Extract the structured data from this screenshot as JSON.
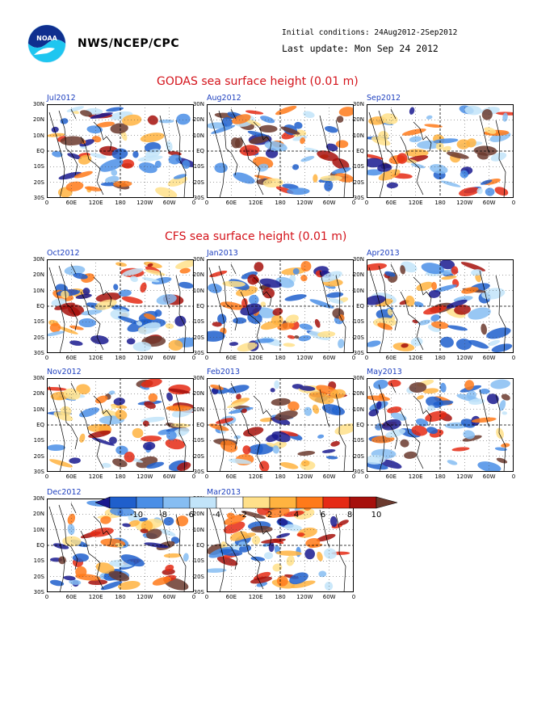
{
  "header": {
    "agency": "NWS/NCEP/CPC",
    "initial_conditions": "Initial conditions: 24Aug2012-2Sep2012",
    "last_update": "Last update: Mon Sep 24 2012",
    "logo_text": "NOAA"
  },
  "sections": {
    "godas_title": "GODAS sea surface height (0.01 m)",
    "cfs_title": "CFS sea surface height (0.01 m)"
  },
  "axes": {
    "y_ticks": [
      "30N",
      "20N",
      "10N",
      "EQ",
      "10S",
      "20S",
      "30S"
    ],
    "x_ticks": [
      "0",
      "60E",
      "120E",
      "180",
      "120W",
      "60W",
      "0"
    ]
  },
  "colors": {
    "title_red": "#d4131b",
    "label_blue": "#1d3fbf",
    "levels_palette": [
      "#1a1a8f",
      "#1f5fcc",
      "#4a8ee6",
      "#86bdf2",
      "#c2e4f9",
      "#ffffff",
      "#ffe08a",
      "#ffb340",
      "#ff7a1a",
      "#e52a14",
      "#a6100c",
      "#6b3a2e"
    ]
  },
  "chart_data": {
    "type": "heatmap",
    "variable": "sea surface height (0.01 m)",
    "colorbar_levels": [
      "-10",
      "-8",
      "-6",
      "-4",
      "-2",
      "2",
      "4",
      "6",
      "8",
      "10"
    ],
    "panels": [
      {
        "label": "Jul2012",
        "source": "GODAS"
      },
      {
        "label": "Aug2012",
        "source": "GODAS"
      },
      {
        "label": "Sep2012",
        "source": "GODAS"
      },
      {
        "label": "Oct2012",
        "source": "CFS"
      },
      {
        "label": "Jan2013",
        "source": "CFS"
      },
      {
        "label": "Apr2013",
        "source": "CFS"
      },
      {
        "label": "Nov2012",
        "source": "CFS"
      },
      {
        "label": "Feb2013",
        "source": "CFS"
      },
      {
        "label": "May2013",
        "source": "CFS"
      },
      {
        "label": "Dec2012",
        "source": "CFS"
      },
      {
        "label": "Mar2013",
        "source": "CFS"
      }
    ]
  }
}
